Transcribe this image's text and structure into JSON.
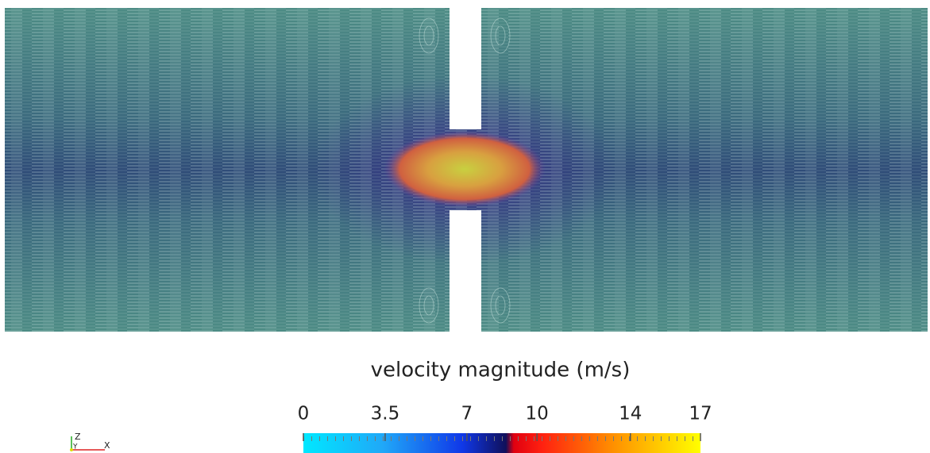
{
  "colorbar": {
    "title": "velocity magnitude (m/s)",
    "range": [
      0,
      17
    ],
    "ticks": [
      0,
      3.5,
      7,
      10,
      14,
      17
    ]
  },
  "axes": {
    "z": "Z",
    "y": "Y",
    "x": "X"
  }
}
